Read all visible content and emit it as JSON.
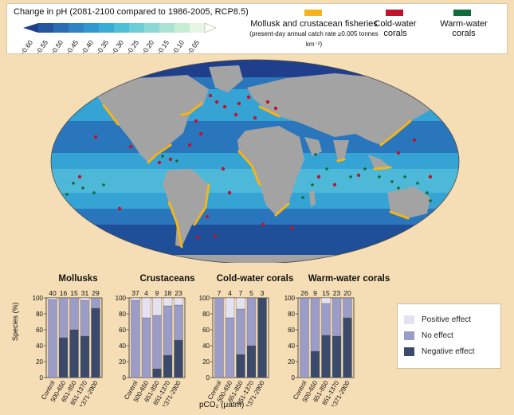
{
  "legend": {
    "ph_title": "Change in pH (2081-2100 compared to 1986-2005, RCP8.5)",
    "ph_scale": [
      {
        "label": "−0.60",
        "color": "#1f3f8c"
      },
      {
        "label": "−0.55",
        "color": "#23569e"
      },
      {
        "label": "−0.50",
        "color": "#2a6db4"
      },
      {
        "label": "−0.45",
        "color": "#2f83c4"
      },
      {
        "label": "−0.40",
        "color": "#2f98cf"
      },
      {
        "label": "−0.35",
        "color": "#38acd6"
      },
      {
        "label": "−0.30",
        "color": "#4dbfd9"
      },
      {
        "label": "−0.25",
        "color": "#6ccdd8"
      },
      {
        "label": "−0.20",
        "color": "#8cd8d5"
      },
      {
        "label": "−0.15",
        "color": "#a9e2d2"
      },
      {
        "label": "−0.10",
        "color": "#c7ecd4"
      },
      {
        "label": "−0.05",
        "color": "#e6f6e3"
      }
    ],
    "fisheries_label": "Mollusk and crustacean fisheries",
    "fisheries_sub": "(present-day annual catch rate ≥0.005 tonnes km⁻²)",
    "fisheries_color": "#f4b41a",
    "cold_label_1": "Cold-water",
    "cold_label_2": "corals",
    "cold_color": "#c0142c",
    "warm_label_1": "Warm-water",
    "warm_label_2": "corals",
    "warm_color": "#0e6b3a"
  },
  "colors": {
    "positive": "#e4e2f0",
    "no_effect": "#9c9cc8",
    "negative": "#3b4a6b",
    "land": "#a3a3a3",
    "ocean_deep": "#2a76bc",
    "ocean_mid": "#35a3d4",
    "ocean_shallow": "#5fc6dc"
  },
  "key": {
    "positive": "Positive effect",
    "no_effect": "No effect",
    "negative": "Negative effect"
  },
  "chart_data": [
    {
      "type": "bar",
      "title": "Mollusks",
      "categories": [
        "Control",
        "500-650",
        "651-850",
        "851-1370",
        "1371-2900"
      ],
      "counts": [
        "40",
        "16",
        "15",
        "31",
        "29"
      ],
      "series": [
        {
          "name": "Negative effect",
          "values": [
            0,
            50,
            60,
            52,
            87
          ]
        },
        {
          "name": "No effect",
          "values": [
            98,
            50,
            40,
            45,
            13
          ]
        },
        {
          "name": "Positive effect",
          "values": [
            2,
            0,
            0,
            3,
            0
          ]
        }
      ],
      "ylim": [
        0,
        100
      ]
    },
    {
      "type": "bar",
      "title": "Crustaceans",
      "categories": [
        "Control",
        "500-650",
        "651-850",
        "851-1370",
        "1371-2900"
      ],
      "counts": [
        "37",
        "4",
        "9",
        "18",
        "23"
      ],
      "series": [
        {
          "name": "Negative effect",
          "values": [
            0,
            0,
            11,
            28,
            47
          ]
        },
        {
          "name": "No effect",
          "values": [
            97,
            75,
            67,
            62,
            44
          ]
        },
        {
          "name": "Positive effect",
          "values": [
            3,
            25,
            22,
            10,
            9
          ]
        }
      ],
      "ylim": [
        0,
        100
      ]
    },
    {
      "type": "bar",
      "title": "Cold-water corals",
      "categories": [
        "Control",
        "500-650",
        "651-850",
        "851-1370",
        "1371-2900"
      ],
      "counts": [
        "7",
        "4",
        "7",
        "5",
        "3"
      ],
      "series": [
        {
          "name": "Negative effect",
          "values": [
            0,
            0,
            29,
            40,
            100
          ]
        },
        {
          "name": "No effect",
          "values": [
            100,
            75,
            57,
            60,
            0
          ]
        },
        {
          "name": "Positive effect",
          "values": [
            0,
            25,
            14,
            0,
            0
          ]
        }
      ],
      "ylim": [
        0,
        100
      ]
    },
    {
      "type": "bar",
      "title": "Warm-water corals",
      "categories": [
        "Control",
        "500-650",
        "651-850",
        "851-1370",
        "1371-2900"
      ],
      "counts": [
        "26",
        "9",
        "15",
        "23",
        "20"
      ],
      "series": [
        {
          "name": "Negative effect",
          "values": [
            0,
            33,
            53,
            52,
            75
          ]
        },
        {
          "name": "No effect",
          "values": [
            100,
            67,
            40,
            48,
            25
          ]
        },
        {
          "name": "Positive effect",
          "values": [
            0,
            0,
            7,
            0,
            0
          ]
        }
      ],
      "ylim": [
        0,
        100
      ]
    }
  ],
  "axes": {
    "ylabel": "Species (%)",
    "xlabel": "pCO₂ (μatm)",
    "yticks": [
      "0",
      "20",
      "40",
      "60",
      "80",
      "100"
    ]
  }
}
